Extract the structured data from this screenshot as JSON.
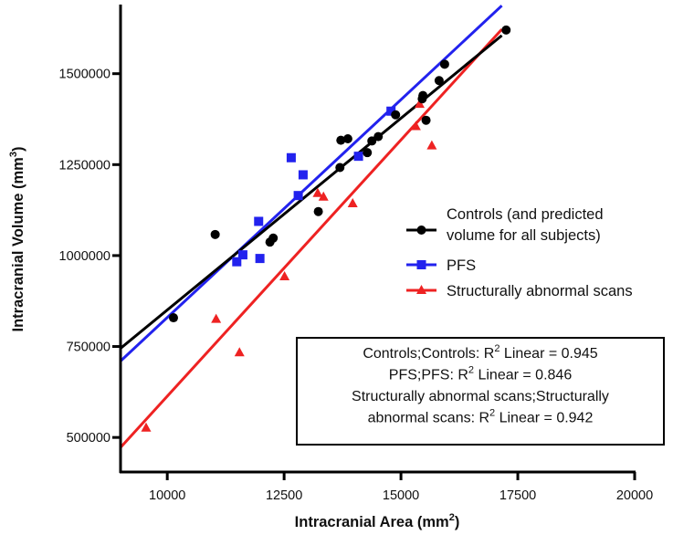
{
  "chart_data": {
    "type": "scatter",
    "xlabel": "Intracranial Area (mm",
    "xlabel_sup": "2",
    "xlabel_end": ")",
    "ylabel": "Intracranial Volume (mm",
    "ylabel_sup": "3",
    "ylabel_end": ")",
    "xlim": [
      9000,
      20000
    ],
    "ylim": [
      405000,
      1690000
    ],
    "xticks": [
      10000,
      12500,
      15000,
      17500,
      20000
    ],
    "xtick_labels": [
      "10000",
      "12500",
      "15000",
      "17500",
      "20000"
    ],
    "yticks": [
      500000,
      750000,
      1000000,
      1250000,
      1500000
    ],
    "ytick_labels": [
      "500000",
      "750000",
      "1000000",
      "1250000",
      "1500000"
    ],
    "grid": false,
    "legend_placement": "right",
    "series": [
      {
        "name": "Controls (and predicted volume for all subjects)",
        "name_lines": [
          "Controls (and predicted",
          "volume for all subjects)"
        ],
        "color": "#000000",
        "marker": "circle",
        "points": [
          [
            10133,
            829000
          ],
          [
            11025,
            1058000
          ],
          [
            12197,
            1037000
          ],
          [
            12267,
            1048000
          ],
          [
            13232,
            1121000
          ],
          [
            13694,
            1242000
          ],
          [
            13714,
            1317000
          ],
          [
            13863,
            1321000
          ],
          [
            14280,
            1283000
          ],
          [
            14377,
            1315000
          ],
          [
            14514,
            1327000
          ],
          [
            14885,
            1387000
          ],
          [
            15455,
            1431000
          ],
          [
            15470,
            1440000
          ],
          [
            15537,
            1372000
          ],
          [
            15816,
            1481000
          ],
          [
            15934,
            1526000
          ],
          [
            17250,
            1620000
          ]
        ],
        "fit_line": [
          [
            9000,
            745000
          ],
          [
            17158,
            1605000
          ]
        ]
      },
      {
        "name": "PFS",
        "name_lines": [
          "PFS"
        ],
        "color": "#2222ee",
        "marker": "square",
        "points": [
          [
            11487,
            983000
          ],
          [
            11617,
            1002000
          ],
          [
            11955,
            1094000
          ],
          [
            11982,
            992000
          ],
          [
            12652,
            1269000
          ],
          [
            12802,
            1165000
          ],
          [
            12906,
            1222000
          ],
          [
            14091,
            1273000
          ],
          [
            14787,
            1397000
          ]
        ],
        "fit_line": [
          [
            9000,
            710000
          ],
          [
            17158,
            1687000
          ]
        ]
      },
      {
        "name": "Structurally abnormal scans",
        "name_lines": [
          "Structurally abnormal scans"
        ],
        "color": "#ee2222",
        "marker": "triangle",
        "points": [
          [
            9547,
            526000
          ],
          [
            11045,
            825000
          ],
          [
            11545,
            733000
          ],
          [
            12509,
            942000
          ],
          [
            13219,
            1171000
          ],
          [
            13342,
            1161000
          ],
          [
            13967,
            1143000
          ],
          [
            15318,
            1355000
          ],
          [
            15398,
            1416000
          ],
          [
            15660,
            1302000
          ]
        ],
        "fit_line": [
          [
            9000,
            472500
          ],
          [
            17158,
            1622000
          ]
        ]
      }
    ],
    "annotation_box": {
      "lines": [
        {
          "pre": "Controls;Controls: R",
          "sup": "2",
          "post": " Linear = 0.945"
        },
        {
          "pre": "PFS;PFS: R",
          "sup": "2",
          "post": " Linear = 0.846"
        },
        {
          "pre": "Structurally abnormal scans;Structurally",
          "sup": "",
          "post": ""
        },
        {
          "pre": "abnormal scans: R",
          "sup": "2",
          "post": " Linear = 0.942"
        }
      ]
    }
  }
}
